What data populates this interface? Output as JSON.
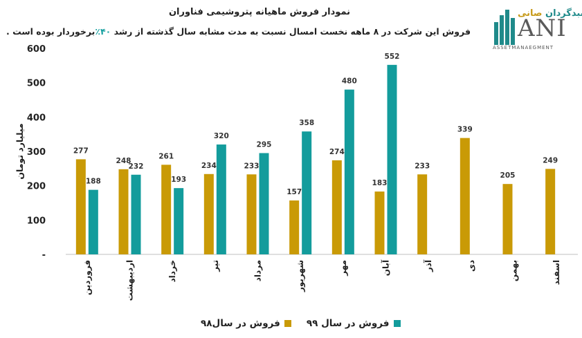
{
  "chart_data": {
    "type": "bar",
    "title": "نمودار فروش ماهیانه پتروشیمی فناوران",
    "subtitle_before": "فروش این شرکت در ۸ ماهه نخست امسال نسبت به مدت مشابه سال گذشته از رشد ",
    "subtitle_highlight": "۴۰٪",
    "subtitle_after": "برخوردار بوده است .",
    "ylabel": "میلیارد تومان",
    "ylim": [
      0,
      600
    ],
    "yticks": [
      "-",
      "100",
      "200",
      "300",
      "400",
      "500",
      "600"
    ],
    "grid": false,
    "legend_position": "bottom",
    "categories": [
      "فروردین",
      "اردیبهشت",
      "خرداد",
      "تیر",
      "مرداد",
      "شهریور",
      "مهر",
      "آبان",
      "آذر",
      "دی",
      "بهمن",
      "اسفند"
    ],
    "series": [
      {
        "name": "فروش در سال۹۸",
        "color": "#c99a06",
        "values": [
          277,
          248,
          261,
          234,
          233,
          157,
          274,
          183,
          233,
          339,
          205,
          249
        ]
      },
      {
        "name": "فروش در سال ۹۹",
        "color": "#139c9c",
        "values": [
          188,
          232,
          193,
          320,
          295,
          358,
          480,
          552,
          null,
          null,
          null,
          null
        ]
      }
    ]
  },
  "logo": {
    "brand": "سبدگردان",
    "brand_accent": "صانی",
    "letters": "ANI",
    "sub": "ASSETMANAEGMENT"
  }
}
